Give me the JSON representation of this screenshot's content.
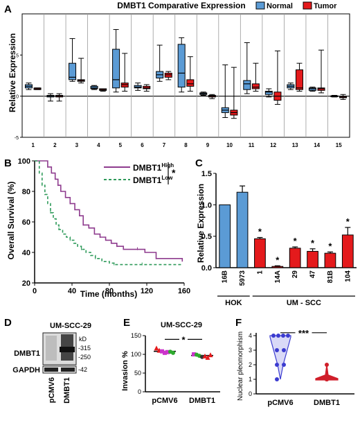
{
  "chart_data": [
    {
      "panel": "A",
      "type": "box",
      "title": "DMBT1 Comparative Expression",
      "ylabel": "Relative Expression",
      "ylim": [
        -5,
        10
      ],
      "yticks": [
        -5,
        0,
        5
      ],
      "categories": [
        "1",
        "2",
        "3",
        "4",
        "5",
        "6",
        "7",
        "8",
        "9",
        "10",
        "11",
        "12",
        "13",
        "14",
        "15"
      ],
      "legend": [
        {
          "name": "Normal",
          "color": "#5b9bd5"
        },
        {
          "name": "Tumor",
          "color": "#e41a1c"
        }
      ],
      "boxes": [
        {
          "group": "1",
          "series": "Normal",
          "q1": 1.0,
          "median": 1.2,
          "q3": 1.4,
          "min": 0.8,
          "max": 1.6
        },
        {
          "group": "1",
          "series": "Tumor",
          "q1": 0.8,
          "median": 0.9,
          "q3": 1.0,
          "min": 0.8,
          "max": 1.0
        },
        {
          "group": "2",
          "series": "Normal",
          "q1": -0.1,
          "median": 0.0,
          "q3": 0.1,
          "min": -0.6,
          "max": 0.3
        },
        {
          "group": "2",
          "series": "Tumor",
          "q1": -0.1,
          "median": 0.0,
          "q3": 0.1,
          "min": -0.6,
          "max": 0.3
        },
        {
          "group": "3",
          "series": "Normal",
          "q1": 2.0,
          "median": 2.3,
          "q3": 4.0,
          "min": 1.8,
          "max": 7.0
        },
        {
          "group": "3",
          "series": "Tumor",
          "q1": 1.8,
          "median": 1.9,
          "q3": 2.0,
          "min": 1.6,
          "max": 4.6
        },
        {
          "group": "4",
          "series": "Normal",
          "q1": 0.9,
          "median": 1.0,
          "q3": 1.2,
          "min": 0.8,
          "max": 1.3
        },
        {
          "group": "4",
          "series": "Tumor",
          "q1": 0.7,
          "median": 0.8,
          "q3": 0.9,
          "min": 0.6,
          "max": 0.9
        },
        {
          "group": "5",
          "series": "Normal",
          "q1": 1.0,
          "median": 2.0,
          "q3": 5.7,
          "min": 0.5,
          "max": 8.1
        },
        {
          "group": "5",
          "series": "Tumor",
          "q1": 1.1,
          "median": 1.4,
          "q3": 1.6,
          "min": 0.6,
          "max": 5.2
        },
        {
          "group": "6",
          "series": "Normal",
          "q1": 1.0,
          "median": 1.1,
          "q3": 1.3,
          "min": 0.7,
          "max": 1.6
        },
        {
          "group": "6",
          "series": "Tumor",
          "q1": 0.9,
          "median": 1.0,
          "q3": 1.2,
          "min": 0.6,
          "max": 1.4
        },
        {
          "group": "7",
          "series": "Normal",
          "q1": 2.2,
          "median": 2.6,
          "q3": 3.0,
          "min": 1.8,
          "max": 6.2
        },
        {
          "group": "7",
          "series": "Tumor",
          "q1": 2.3,
          "median": 2.6,
          "q3": 2.8,
          "min": 2.0,
          "max": 3.0
        },
        {
          "group": "8",
          "series": "Normal",
          "q1": 1.1,
          "median": 2.8,
          "q3": 6.3,
          "min": 0.5,
          "max": 7.1
        },
        {
          "group": "8",
          "series": "Tumor",
          "q1": 1.2,
          "median": 1.5,
          "q3": 2.0,
          "min": 0.6,
          "max": 4.8
        },
        {
          "group": "9",
          "series": "Normal",
          "q1": 0.2,
          "median": 0.3,
          "q3": 0.4,
          "min": 0.1,
          "max": 0.5
        },
        {
          "group": "9",
          "series": "Tumor",
          "q1": -0.1,
          "median": 0.0,
          "q3": 0.1,
          "min": -0.3,
          "max": 0.2
        },
        {
          "group": "10",
          "series": "Normal",
          "q1": -2.0,
          "median": -1.7,
          "q3": -1.4,
          "min": -2.6,
          "max": 3.8
        },
        {
          "group": "10",
          "series": "Tumor",
          "q1": -2.3,
          "median": -2.0,
          "q3": -1.7,
          "min": -2.7,
          "max": 3.5
        },
        {
          "group": "11",
          "series": "Normal",
          "q1": 0.8,
          "median": 1.5,
          "q3": 1.9,
          "min": 0.3,
          "max": 6.5
        },
        {
          "group": "11",
          "series": "Tumor",
          "q1": 0.9,
          "median": 1.1,
          "q3": 1.5,
          "min": 0.6,
          "max": 4.0
        },
        {
          "group": "12",
          "series": "Normal",
          "q1": 0.2,
          "median": 0.5,
          "q3": 0.6,
          "min": -0.1,
          "max": 0.9
        },
        {
          "group": "12",
          "series": "Tumor",
          "q1": -0.5,
          "median": 0.0,
          "q3": 0.5,
          "min": -1.0,
          "max": 5.5
        },
        {
          "group": "13",
          "series": "Normal",
          "q1": 1.0,
          "median": 1.2,
          "q3": 1.4,
          "min": 0.8,
          "max": 1.6
        },
        {
          "group": "13",
          "series": "Tumor",
          "q1": 0.8,
          "median": 1.0,
          "q3": 3.2,
          "min": 0.6,
          "max": 4.0
        },
        {
          "group": "14",
          "series": "Normal",
          "q1": 0.7,
          "median": 0.9,
          "q3": 1.0,
          "min": 0.6,
          "max": 1.1
        },
        {
          "group": "14",
          "series": "Tumor",
          "q1": 0.7,
          "median": 0.9,
          "q3": 1.0,
          "min": 0.4,
          "max": 5.6
        },
        {
          "group": "15",
          "series": "Normal",
          "q1": -0.05,
          "median": 0.0,
          "q3": 0.05,
          "min": -0.1,
          "max": 0.1
        },
        {
          "group": "15",
          "series": "Tumor",
          "q1": -0.2,
          "median": -0.1,
          "q3": 0.0,
          "min": -0.4,
          "max": 0.2
        }
      ]
    },
    {
      "panel": "B",
      "type": "line",
      "xlabel": "Time (months)",
      "ylabel": "Overall Survival (%)",
      "xlim": [
        0,
        160
      ],
      "ylim": [
        20,
        100
      ],
      "xticks": [
        0,
        40,
        80,
        120,
        160
      ],
      "yticks": [
        20,
        40,
        60,
        80,
        100
      ],
      "significance": "*",
      "series": [
        {
          "name": "DMBT1",
          "superscript": "High",
          "color": "#8e3b8e",
          "x": [
            0,
            10,
            14,
            18,
            22,
            25,
            28,
            33,
            38,
            43,
            48,
            52,
            58,
            64,
            70,
            76,
            82,
            88,
            95,
            102,
            110,
            118,
            126,
            130,
            158
          ],
          "y": [
            100,
            100,
            96,
            92,
            88,
            84,
            80,
            76,
            72,
            68,
            64,
            58,
            56,
            52,
            50,
            48,
            46,
            44,
            42,
            42,
            42,
            40,
            40,
            36,
            34
          ]
        },
        {
          "name": "DMBT1",
          "superscript": "Low",
          "color": "#2e9a5a",
          "x": [
            0,
            5,
            8,
            11,
            14,
            17,
            20,
            23,
            26,
            30,
            34,
            38,
            42,
            46,
            50,
            55,
            60,
            65,
            72,
            80,
            85,
            92,
            100,
            115,
            158
          ],
          "y": [
            100,
            92,
            84,
            78,
            72,
            66,
            62,
            58,
            55,
            52,
            50,
            48,
            46,
            44,
            42,
            40,
            38,
            36,
            34,
            33,
            32,
            32,
            32,
            32,
            32
          ]
        }
      ]
    },
    {
      "panel": "C",
      "type": "bar",
      "ylabel": "Relative Expression",
      "ylim": [
        0,
        1.5
      ],
      "yticks": [
        0.0,
        0.5,
        1.0,
        1.5
      ],
      "categories": [
        "16B",
        "5973",
        "1",
        "14A",
        "29",
        "47",
        "81B",
        "104"
      ],
      "values": [
        1.0,
        1.2,
        0.46,
        0.02,
        0.31,
        0.26,
        0.23,
        0.52
      ],
      "errors": [
        0,
        0.1,
        0.02,
        0.01,
        0.02,
        0.04,
        0.02,
        0.12
      ],
      "colors": [
        "#5b9bd5",
        "#5b9bd5",
        "#e41a1c",
        "#e41a1c",
        "#e41a1c",
        "#e41a1c",
        "#e41a1c",
        "#e41a1c"
      ],
      "significance": [
        "",
        "",
        "*",
        "*",
        "*",
        "*",
        "*",
        "*"
      ],
      "groups": [
        {
          "label": "HOK",
          "range": [
            0,
            1
          ]
        },
        {
          "label": "UM - SCC",
          "range": [
            2,
            7
          ]
        }
      ]
    },
    {
      "panel": "E",
      "type": "scatter",
      "title": "UM-SCC-29",
      "ylabel": "Invasion %",
      "ylim": [
        0,
        150
      ],
      "yticks": [
        0,
        50,
        100,
        150
      ],
      "categories": [
        "pCMV6",
        "DMBT1"
      ],
      "means": [
        108,
        97
      ],
      "significance": "*",
      "points": [
        {
          "group": 0,
          "value": 116,
          "shape": "triangle",
          "color": "#e41a1c"
        },
        {
          "group": 0,
          "value": 110,
          "shape": "triangle",
          "color": "#e41a1c"
        },
        {
          "group": 0,
          "value": 108,
          "shape": "square",
          "color": "#cc33cc"
        },
        {
          "group": 0,
          "value": 104,
          "shape": "square",
          "color": "#cc33cc"
        },
        {
          "group": 0,
          "value": 106,
          "shape": "square",
          "color": "#cc33cc"
        },
        {
          "group": 0,
          "value": 107,
          "shape": "circle",
          "color": "#2eaa2e"
        },
        {
          "group": 0,
          "value": 104,
          "shape": "circle",
          "color": "#2eaa2e"
        },
        {
          "group": 1,
          "value": 100,
          "shape": "square",
          "color": "#cc33cc"
        },
        {
          "group": 1,
          "value": 99,
          "shape": "circle",
          "color": "#2eaa2e"
        },
        {
          "group": 1,
          "value": 96,
          "shape": "circle",
          "color": "#2eaa2e"
        },
        {
          "group": 1,
          "value": 93,
          "shape": "circle",
          "color": "#333333"
        },
        {
          "group": 1,
          "value": 95,
          "shape": "triangle",
          "color": "#e41a1c"
        },
        {
          "group": 1,
          "value": 91,
          "shape": "triangle",
          "color": "#e41a1c"
        },
        {
          "group": 1,
          "value": 98,
          "shape": "triangle",
          "color": "#e41a1c"
        }
      ]
    },
    {
      "panel": "F",
      "type": "violin",
      "ylabel": "Nuclear pleomorphism",
      "ylim": [
        0,
        4
      ],
      "yticks": [
        0,
        1,
        2,
        3,
        4
      ],
      "categories": [
        "pCMV6",
        "DMBT1"
      ],
      "colors": [
        "#3b3bd0",
        "#d01f2a"
      ],
      "significance": "***",
      "points": [
        {
          "group": 0,
          "values": [
            4,
            4,
            4,
            4,
            3,
            3,
            2,
            2,
            1
          ]
        },
        {
          "group": 1,
          "values": [
            2,
            1,
            1,
            1,
            1,
            1,
            1,
            1,
            1
          ]
        }
      ]
    }
  ],
  "panel_d": {
    "title": "UM-SCC-29",
    "unit": "kD",
    "markers": [
      "-315",
      "-250",
      "-42"
    ],
    "rows": [
      "DMBT1",
      "GAPDH"
    ],
    "lanes": [
      "pCMV6",
      "DMBT1"
    ]
  },
  "panel_labels": [
    "A",
    "B",
    "C",
    "D",
    "E",
    "F"
  ]
}
